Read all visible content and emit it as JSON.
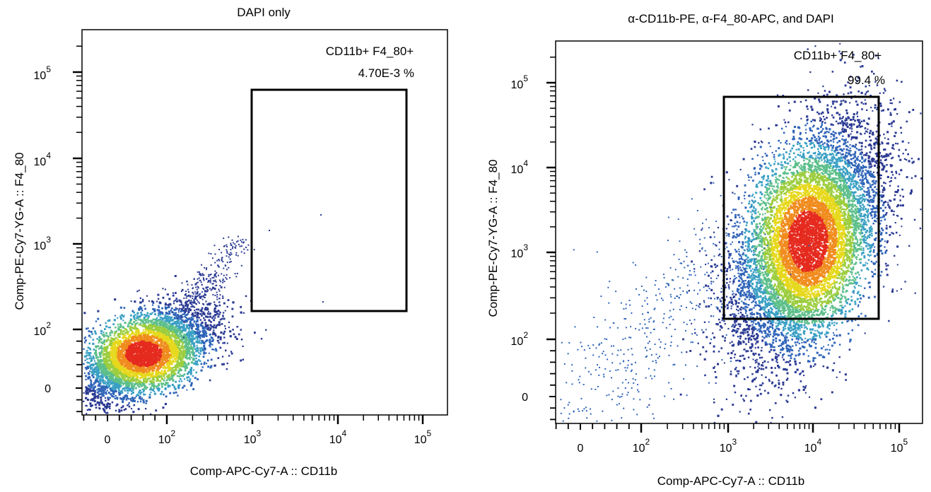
{
  "chart_data": [
    {
      "type": "scatter",
      "title": "DAPI only",
      "xlabel": "Comp-APC-Cy7-A :: CD11b",
      "ylabel": "Comp-PE-Cy7-YG-A :: F4_80",
      "x_scale": "biexponential",
      "y_scale": "biexponential",
      "x_ticks": [
        {
          "base": "0",
          "exp": ""
        },
        {
          "base": "10",
          "exp": "2"
        },
        {
          "base": "10",
          "exp": "3"
        },
        {
          "base": "10",
          "exp": "4"
        },
        {
          "base": "10",
          "exp": "5"
        }
      ],
      "y_ticks": [
        {
          "base": "0",
          "exp": ""
        },
        {
          "base": "10",
          "exp": "2"
        },
        {
          "base": "10",
          "exp": "3"
        },
        {
          "base": "10",
          "exp": "4"
        },
        {
          "base": "10",
          "exp": "5"
        }
      ],
      "population_peak": {
        "x": 60,
        "y": 60
      },
      "gate": {
        "name": "CD11b+ F4_80+",
        "percent": "4.70E-3",
        "unit": "%",
        "x_range": [
          1000,
          60000
        ],
        "y_range": [
          150,
          60000
        ]
      }
    },
    {
      "type": "scatter",
      "title": "α-CD11b-PE, α-F4_80-APC, and DAPI",
      "xlabel": "Comp-APC-Cy7-A :: CD11b",
      "ylabel": "Comp-PE-Cy7-YG-A :: F4_80",
      "x_scale": "biexponential",
      "y_scale": "biexponential",
      "x_ticks": [
        {
          "base": "0",
          "exp": ""
        },
        {
          "base": "10",
          "exp": "2"
        },
        {
          "base": "10",
          "exp": "3"
        },
        {
          "base": "10",
          "exp": "4"
        },
        {
          "base": "10",
          "exp": "5"
        }
      ],
      "y_ticks": [
        {
          "base": "0",
          "exp": ""
        },
        {
          "base": "10",
          "exp": "2"
        },
        {
          "base": "10",
          "exp": "3"
        },
        {
          "base": "10",
          "exp": "4"
        },
        {
          "base": "10",
          "exp": "5"
        }
      ],
      "population_peak": {
        "x": 10000,
        "y": 3000
      },
      "gate": {
        "name": "CD11b+ F4_80+",
        "percent": "99.4",
        "unit": "%",
        "x_range": [
          1000,
          60000
        ],
        "y_range": [
          150,
          60000
        ]
      }
    }
  ],
  "colors": {
    "density_scale": [
      "#2b3a93",
      "#2f64b8",
      "#3aa0c4",
      "#5cbf8a",
      "#9ccd3f",
      "#e6d81c",
      "#f08c1e",
      "#e52a1e"
    ],
    "gate_stroke": "#000000"
  }
}
